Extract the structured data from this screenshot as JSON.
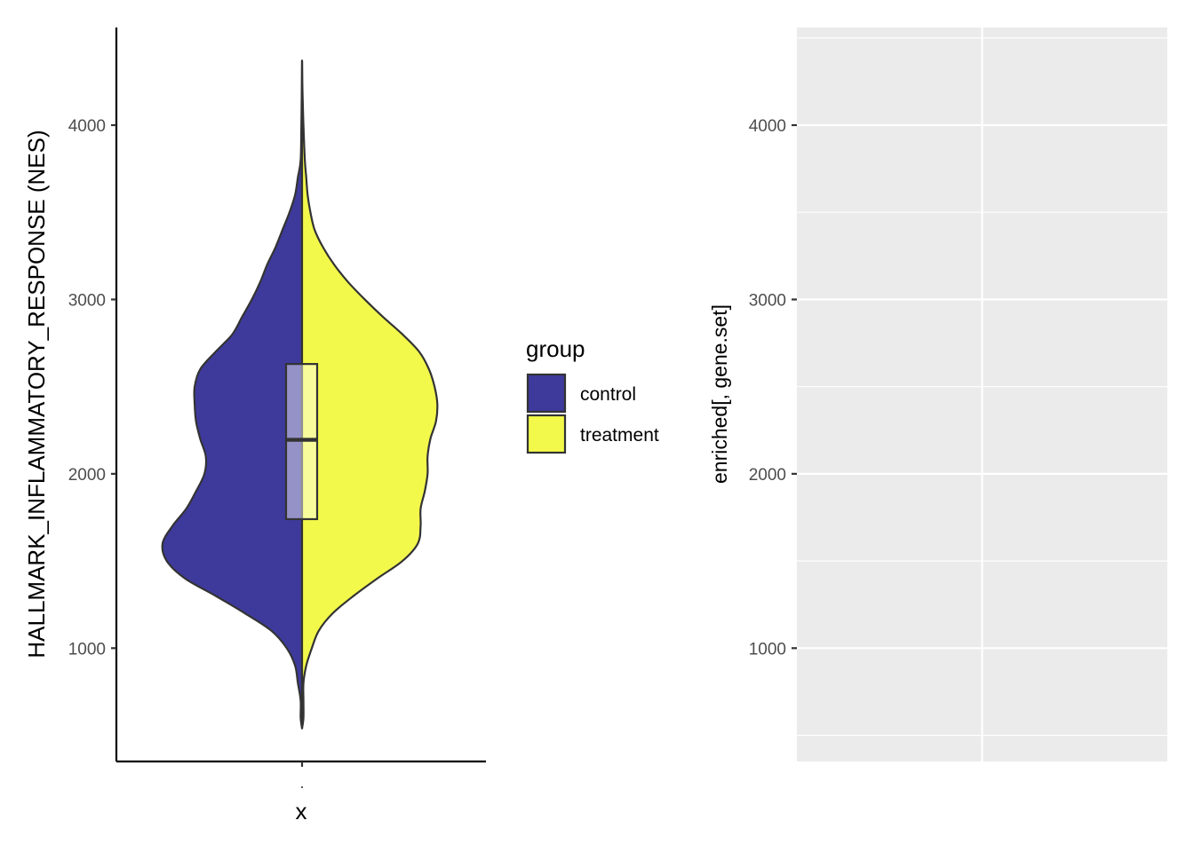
{
  "chart_data": [
    {
      "type": "violin",
      "title": "",
      "xlabel": "x",
      "ylabel": "HALLMARK_INFLAMMATORY_RESPONSE (NES)",
      "x_tick_labels": [
        "."
      ],
      "yticks": [
        1000,
        2000,
        3000,
        4000
      ],
      "ylim": [
        350,
        4560
      ],
      "grid": false,
      "legend": {
        "title": "group",
        "placement": "right",
        "entries": [
          {
            "label": "control",
            "color": "#3e3a9c"
          },
          {
            "label": "treatment",
            "color": "#f2f94a"
          }
        ]
      },
      "series": [
        {
          "name": "control",
          "color": "#3e3a9c",
          "side": "left",
          "density": [
            {
              "y": 540,
              "w": 0.0
            },
            {
              "y": 600,
              "w": 0.01
            },
            {
              "y": 700,
              "w": 0.01
            },
            {
              "y": 800,
              "w": 0.03
            },
            {
              "y": 900,
              "w": 0.05
            },
            {
              "y": 1000,
              "w": 0.11
            },
            {
              "y": 1100,
              "w": 0.22
            },
            {
              "y": 1200,
              "w": 0.41
            },
            {
              "y": 1300,
              "w": 0.62
            },
            {
              "y": 1400,
              "w": 0.84
            },
            {
              "y": 1500,
              "w": 0.97
            },
            {
              "y": 1600,
              "w": 1.0
            },
            {
              "y": 1700,
              "w": 0.93
            },
            {
              "y": 1800,
              "w": 0.83
            },
            {
              "y": 1900,
              "w": 0.76
            },
            {
              "y": 2000,
              "w": 0.7
            },
            {
              "y": 2100,
              "w": 0.69
            },
            {
              "y": 2200,
              "w": 0.73
            },
            {
              "y": 2300,
              "w": 0.76
            },
            {
              "y": 2400,
              "w": 0.77
            },
            {
              "y": 2500,
              "w": 0.77
            },
            {
              "y": 2600,
              "w": 0.73
            },
            {
              "y": 2700,
              "w": 0.62
            },
            {
              "y": 2800,
              "w": 0.5
            },
            {
              "y": 2900,
              "w": 0.43
            },
            {
              "y": 3000,
              "w": 0.36
            },
            {
              "y": 3100,
              "w": 0.3
            },
            {
              "y": 3200,
              "w": 0.25
            },
            {
              "y": 3300,
              "w": 0.19
            },
            {
              "y": 3400,
              "w": 0.14
            },
            {
              "y": 3500,
              "w": 0.09
            },
            {
              "y": 3600,
              "w": 0.05
            },
            {
              "y": 3700,
              "w": 0.03
            },
            {
              "y": 3800,
              "w": 0.01
            },
            {
              "y": 4000,
              "w": 0.005
            },
            {
              "y": 4200,
              "w": 0.002
            },
            {
              "y": 4370,
              "w": 0.0
            }
          ]
        },
        {
          "name": "treatment",
          "color": "#f2f94a",
          "side": "right",
          "density": [
            {
              "y": 540,
              "w": 0.0
            },
            {
              "y": 600,
              "w": 0.01
            },
            {
              "y": 700,
              "w": 0.01
            },
            {
              "y": 800,
              "w": 0.01
            },
            {
              "y": 900,
              "w": 0.03
            },
            {
              "y": 1000,
              "w": 0.07
            },
            {
              "y": 1100,
              "w": 0.12
            },
            {
              "y": 1200,
              "w": 0.22
            },
            {
              "y": 1300,
              "w": 0.37
            },
            {
              "y": 1400,
              "w": 0.54
            },
            {
              "y": 1500,
              "w": 0.72
            },
            {
              "y": 1600,
              "w": 0.83
            },
            {
              "y": 1700,
              "w": 0.85
            },
            {
              "y": 1800,
              "w": 0.85
            },
            {
              "y": 1900,
              "w": 0.88
            },
            {
              "y": 2000,
              "w": 0.9
            },
            {
              "y": 2100,
              "w": 0.9
            },
            {
              "y": 2200,
              "w": 0.92
            },
            {
              "y": 2300,
              "w": 0.96
            },
            {
              "y": 2400,
              "w": 0.97
            },
            {
              "y": 2500,
              "w": 0.95
            },
            {
              "y": 2600,
              "w": 0.91
            },
            {
              "y": 2700,
              "w": 0.84
            },
            {
              "y": 2800,
              "w": 0.72
            },
            {
              "y": 2900,
              "w": 0.58
            },
            {
              "y": 3000,
              "w": 0.45
            },
            {
              "y": 3100,
              "w": 0.33
            },
            {
              "y": 3200,
              "w": 0.23
            },
            {
              "y": 3300,
              "w": 0.15
            },
            {
              "y": 3400,
              "w": 0.09
            },
            {
              "y": 3500,
              "w": 0.06
            },
            {
              "y": 3600,
              "w": 0.04
            },
            {
              "y": 3700,
              "w": 0.03
            },
            {
              "y": 3800,
              "w": 0.02
            },
            {
              "y": 4000,
              "w": 0.01
            },
            {
              "y": 4200,
              "w": 0.003
            },
            {
              "y": 4370,
              "w": 0.0
            }
          ]
        }
      ],
      "boxplot": {
        "q1": 1740,
        "median": 2195,
        "q3": 2630
      }
    },
    {
      "type": "empty",
      "title": "",
      "xlabel": "",
      "ylabel": "enriched[, gene.set]",
      "yticks": [
        1000,
        2000,
        3000,
        4000
      ],
      "ylim": [
        350,
        4560
      ],
      "grid": true,
      "background": "#ebebeb"
    }
  ]
}
